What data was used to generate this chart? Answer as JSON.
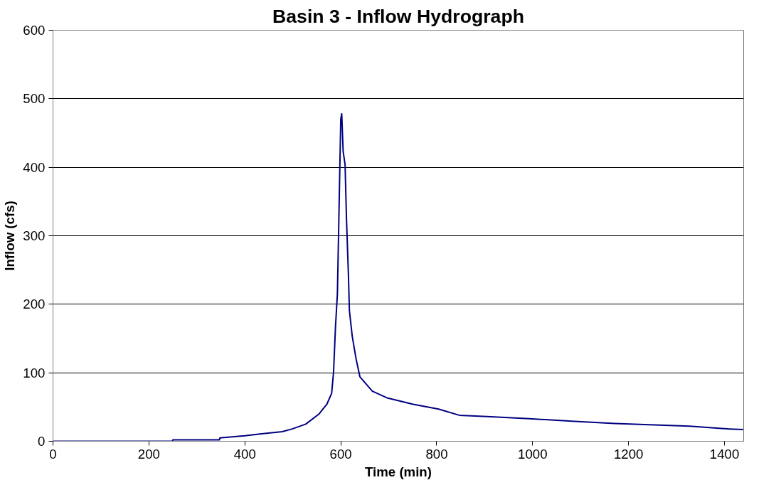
{
  "chart_data": {
    "type": "line",
    "title": "Basin 3 - Inflow Hydrograph",
    "xlabel": "Time (min)",
    "ylabel": "Inflow (cfs)",
    "xlim": [
      0,
      1440
    ],
    "xticks": [
      0,
      200,
      400,
      600,
      800,
      1000,
      1200,
      1400
    ],
    "ylim": [
      0,
      600
    ],
    "yticks": [
      0,
      100,
      200,
      300,
      400,
      500,
      600
    ],
    "grid": "y",
    "marker": "none",
    "line_style": "solid",
    "series": [
      {
        "color": "#000080",
        "x": [
          0,
          249,
          250,
          347,
          348,
          400,
          435,
          478,
          499,
          527,
          555,
          571,
          581,
          585,
          589,
          593,
          596,
          600,
          602,
          605,
          609,
          612,
          616,
          618,
          624,
          632,
          640,
          666,
          698,
          751,
          804,
          847,
          905,
          993,
          1088,
          1171,
          1327,
          1410,
          1439
        ],
        "values": [
          0,
          0,
          2,
          2,
          5,
          8,
          11,
          14,
          18,
          25,
          40,
          54,
          70,
          101,
          167,
          215,
          323,
          470,
          478,
          423,
          404,
          323,
          243,
          191,
          153,
          120,
          94,
          73,
          63,
          54,
          47,
          38,
          36,
          33,
          29,
          26,
          22,
          18,
          17
        ]
      }
    ]
  }
}
